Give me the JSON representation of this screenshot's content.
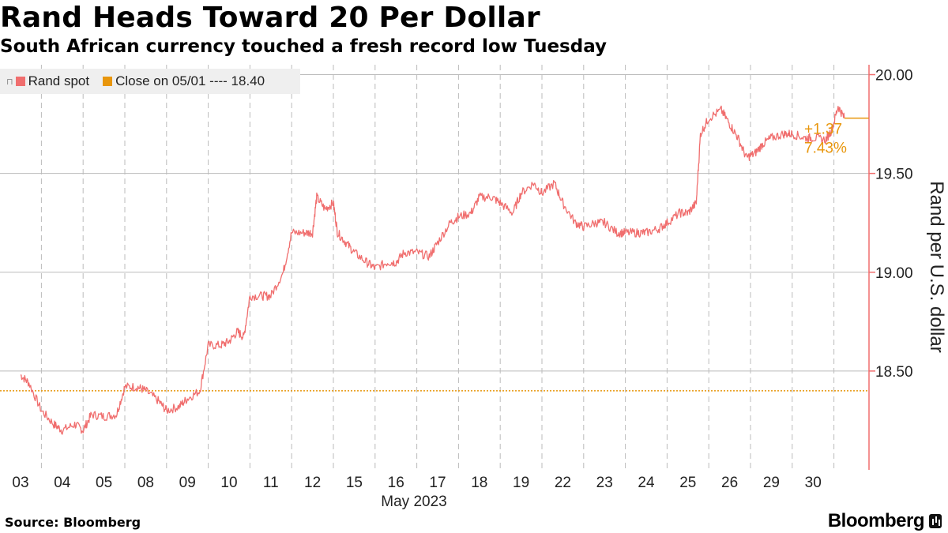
{
  "header": {
    "title": "Rand Heads Toward 20 Per Dollar",
    "subtitle": "South African currency touched a fresh record low Tuesday"
  },
  "legend": {
    "series1_label": "Rand spot",
    "series2_label": "Close on 05/01 ---- 18.40"
  },
  "footer": {
    "source": "Source: Bloomberg",
    "brand": "Bloomberg"
  },
  "colors": {
    "series": "#f06e6e",
    "reference": "#e8960c",
    "grid": "#bbbbbb",
    "axis": "#f06e6e"
  },
  "chart_data": {
    "type": "line",
    "title": "Rand Heads Toward 20 Per Dollar",
    "subtitle": "South African currency touched a fresh record low Tuesday",
    "ylabel": "Rand per U.S. dollar",
    "xlabel": "May 2023",
    "ylim": [
      18.0,
      20.05
    ],
    "yticks": [
      18.5,
      19.0,
      19.5,
      20.0
    ],
    "ytick_labels": [
      "18.50",
      "19.00",
      "19.50",
      "20.00"
    ],
    "categories": [
      "03",
      "04",
      "05",
      "08",
      "09",
      "10",
      "11",
      "12",
      "15",
      "16",
      "17",
      "18",
      "19",
      "22",
      "23",
      "24",
      "25",
      "26",
      "29",
      "30"
    ],
    "grid": true,
    "legend_position": "top-left",
    "reference_line": {
      "name": "Close on 05/01",
      "value": 18.4
    },
    "annotation": {
      "change": "+1.37",
      "percent": "7.43%"
    },
    "series": [
      {
        "name": "Rand spot",
        "values": [
          [
            0.0,
            18.48
          ],
          [
            0.2,
            18.44
          ],
          [
            0.5,
            18.3
          ],
          [
            0.8,
            18.23
          ],
          [
            1.0,
            18.2
          ],
          [
            1.3,
            18.23
          ],
          [
            1.5,
            18.2
          ],
          [
            1.7,
            18.28
          ],
          [
            2.0,
            18.27
          ],
          [
            2.3,
            18.28
          ],
          [
            2.5,
            18.42
          ],
          [
            2.8,
            18.42
          ],
          [
            3.0,
            18.4
          ],
          [
            3.3,
            18.35
          ],
          [
            3.5,
            18.3
          ],
          [
            3.8,
            18.32
          ],
          [
            4.0,
            18.36
          ],
          [
            4.3,
            18.4
          ],
          [
            4.5,
            18.63
          ],
          [
            4.8,
            18.63
          ],
          [
            5.0,
            18.65
          ],
          [
            5.2,
            18.7
          ],
          [
            5.35,
            18.67
          ],
          [
            5.5,
            18.88
          ],
          [
            5.8,
            18.88
          ],
          [
            6.0,
            18.88
          ],
          [
            6.3,
            19.0
          ],
          [
            6.5,
            19.2
          ],
          [
            6.8,
            19.2
          ],
          [
            7.0,
            19.2
          ],
          [
            7.1,
            19.38
          ],
          [
            7.3,
            19.32
          ],
          [
            7.5,
            19.35
          ],
          [
            7.6,
            19.2
          ],
          [
            7.8,
            19.15
          ],
          [
            8.0,
            19.1
          ],
          [
            8.3,
            19.05
          ],
          [
            8.5,
            19.02
          ],
          [
            8.8,
            19.05
          ],
          [
            9.0,
            19.05
          ],
          [
            9.2,
            19.1
          ],
          [
            9.5,
            19.1
          ],
          [
            9.8,
            19.08
          ],
          [
            10.0,
            19.15
          ],
          [
            10.3,
            19.25
          ],
          [
            10.5,
            19.28
          ],
          [
            10.8,
            19.3
          ],
          [
            11.0,
            19.38
          ],
          [
            11.3,
            19.38
          ],
          [
            11.5,
            19.35
          ],
          [
            11.8,
            19.3
          ],
          [
            12.0,
            19.4
          ],
          [
            12.3,
            19.45
          ],
          [
            12.5,
            19.4
          ],
          [
            12.8,
            19.45
          ],
          [
            13.0,
            19.35
          ],
          [
            13.3,
            19.25
          ],
          [
            13.5,
            19.23
          ],
          [
            13.8,
            19.25
          ],
          [
            14.0,
            19.25
          ],
          [
            14.3,
            19.2
          ],
          [
            14.5,
            19.2
          ],
          [
            14.8,
            19.2
          ],
          [
            15.0,
            19.2
          ],
          [
            15.3,
            19.22
          ],
          [
            15.5,
            19.25
          ],
          [
            15.8,
            19.3
          ],
          [
            16.0,
            19.3
          ],
          [
            16.2,
            19.35
          ],
          [
            16.3,
            19.7
          ],
          [
            16.5,
            19.78
          ],
          [
            16.8,
            19.82
          ],
          [
            17.0,
            19.75
          ],
          [
            17.2,
            19.68
          ],
          [
            17.4,
            19.58
          ],
          [
            17.6,
            19.6
          ],
          [
            17.8,
            19.65
          ],
          [
            18.0,
            19.68
          ],
          [
            18.3,
            19.7
          ],
          [
            18.5,
            19.7
          ],
          [
            18.8,
            19.68
          ],
          [
            19.0,
            19.68
          ],
          [
            19.3,
            19.67
          ],
          [
            19.45,
            19.72
          ],
          [
            19.6,
            19.84
          ],
          [
            19.75,
            19.78
          ]
        ]
      }
    ]
  }
}
